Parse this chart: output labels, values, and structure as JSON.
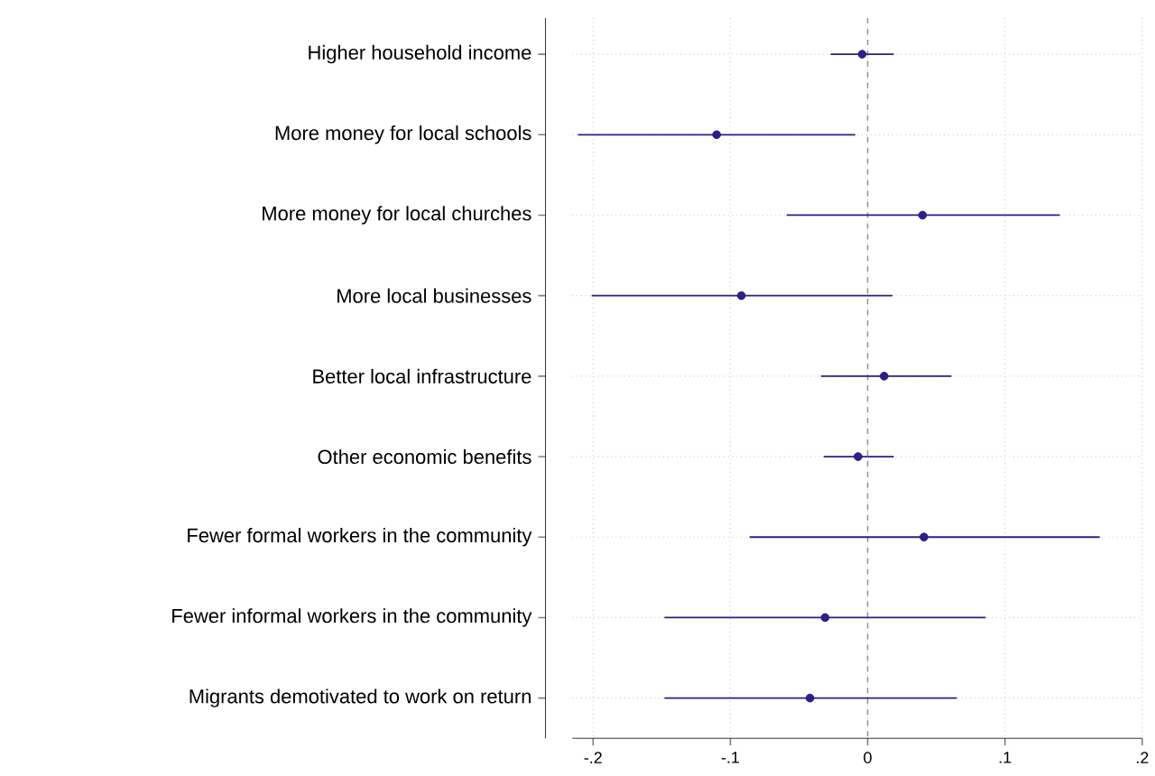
{
  "chart_data": {
    "type": "scatter",
    "orientation": "horizontal",
    "categories": [
      "Higher household income",
      "More money for local schools",
      "More money for local churches",
      "More local businesses",
      "Better local infrastructure",
      "Other economic benefits",
      "Fewer formal workers in the community",
      "Fewer informal workers in the community",
      "Migrants demotivated to work on return"
    ],
    "series": [
      {
        "color": "#2e1f87",
        "values": [
          -0.004,
          -0.11,
          0.04,
          -0.092,
          0.012,
          -0.007,
          0.041,
          -0.031,
          -0.042
        ],
        "errors": [
          [
            -0.027,
            0.019
          ],
          [
            -0.211,
            -0.009
          ],
          [
            -0.059,
            0.14
          ],
          [
            -0.201,
            0.018
          ],
          [
            -0.034,
            0.061
          ],
          [
            -0.032,
            0.019
          ],
          [
            -0.086,
            0.169
          ],
          [
            -0.148,
            0.086
          ],
          [
            -0.148,
            0.065
          ]
        ]
      }
    ],
    "xlim": [
      -0.215,
      0.2
    ],
    "xticks": [
      {
        "value": -0.2,
        "label": "-.2"
      },
      {
        "value": -0.1,
        "label": "-.1"
      },
      0,
      {
        "value": 0.1,
        "label": ".1"
      },
      {
        "value": 0.2,
        "label": ".2"
      }
    ],
    "ref_lines": [
      {
        "axis": "x",
        "value": 0,
        "color": "#999999",
        "line_style": "dashed"
      }
    ],
    "grid": true
  }
}
